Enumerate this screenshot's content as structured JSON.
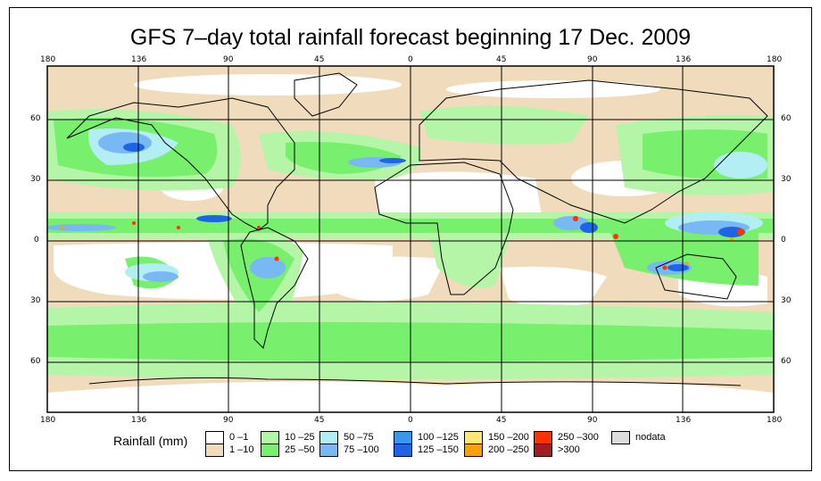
{
  "title": "GFS 7–day total rainfall forecast beginning 17 Dec. 2009",
  "lon_labels": [
    "180",
    "136",
    "90",
    "45",
    "0",
    "45",
    "90",
    "136",
    "180"
  ],
  "lat_labels_left": [
    "60",
    "30",
    "0",
    "30",
    "60"
  ],
  "lat_labels_right": [
    "60",
    "30",
    "0",
    "30",
    "60"
  ],
  "legend": {
    "title": "Rainfall (mm)",
    "items": [
      {
        "label": "0 –1",
        "color": "#ffffff"
      },
      {
        "label": "1 –10",
        "color": "#f0dcbc"
      },
      {
        "label": "10 –25",
        "color": "#b4f5a8"
      },
      {
        "label": "25 –50",
        "color": "#78f06e"
      },
      {
        "label": "50 –75",
        "color": "#b4eef5"
      },
      {
        "label": "75 –100",
        "color": "#78b8f5"
      },
      {
        "label": "100 –125",
        "color": "#3c96f0"
      },
      {
        "label": "125 –150",
        "color": "#1e64e6"
      },
      {
        "label": "150 –200",
        "color": "#ffe678"
      },
      {
        "label": "200 –250",
        "color": "#ffa000"
      },
      {
        "label": "250 –300",
        "color": "#ff3200"
      },
      {
        "label": ">300",
        "color": "#a01e1e"
      },
      {
        "label": "nodata",
        "color": "#dcdcdc"
      }
    ]
  }
}
